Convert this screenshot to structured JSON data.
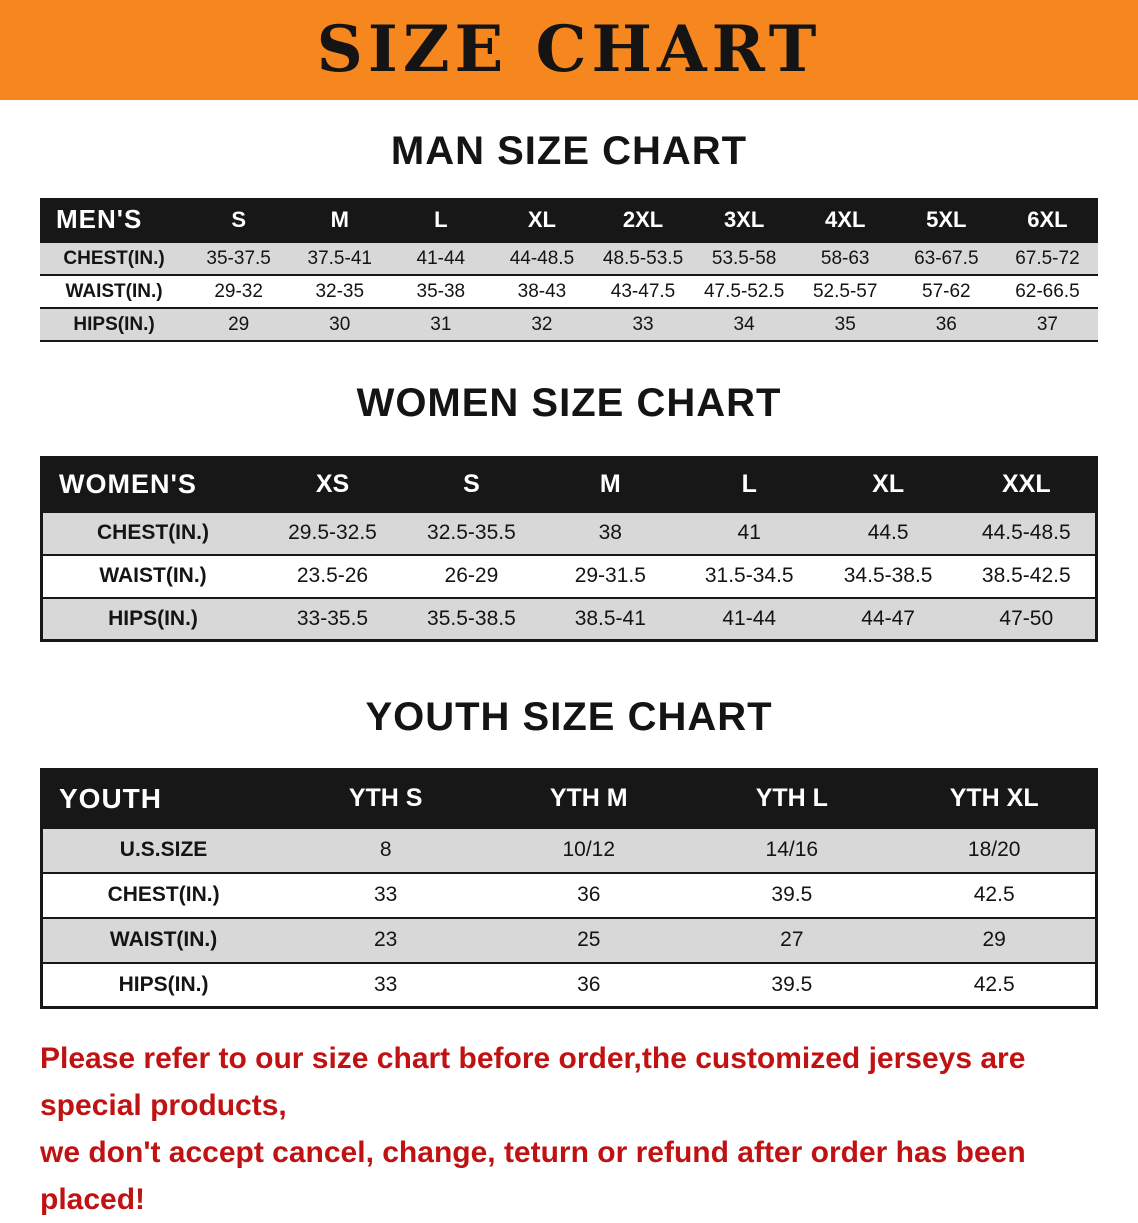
{
  "banner": {
    "title": "SIZE CHART"
  },
  "chart_data": [
    {
      "type": "table",
      "title": "MAN SIZE CHART",
      "columns": [
        "MEN'S",
        "S",
        "M",
        "L",
        "XL",
        "2XL",
        "3XL",
        "4XL",
        "5XL",
        "6XL"
      ],
      "rows": [
        [
          "CHEST(IN.)",
          "35-37.5",
          "37.5-41",
          "41-44",
          "44-48.5",
          "48.5-53.5",
          "53.5-58",
          "58-63",
          "63-67.5",
          "67.5-72"
        ],
        [
          "WAIST(IN.)",
          "29-32",
          "32-35",
          "35-38",
          "38-43",
          "43-47.5",
          "47.5-52.5",
          "52.5-57",
          "57-62",
          "62-66.5"
        ],
        [
          "HIPS(IN.)",
          "29",
          "30",
          "31",
          "32",
          "33",
          "34",
          "35",
          "36",
          "37"
        ]
      ]
    },
    {
      "type": "table",
      "title": "WOMEN SIZE CHART",
      "columns": [
        "WOMEN'S",
        "XS",
        "S",
        "M",
        "L",
        "XL",
        "XXL"
      ],
      "rows": [
        [
          "CHEST(IN.)",
          "29.5-32.5",
          "32.5-35.5",
          "38",
          "41",
          "44.5",
          "44.5-48.5"
        ],
        [
          "WAIST(IN.)",
          "23.5-26",
          "26-29",
          "29-31.5",
          "31.5-34.5",
          "34.5-38.5",
          "38.5-42.5"
        ],
        [
          "HIPS(IN.)",
          "33-35.5",
          "35.5-38.5",
          "38.5-41",
          "41-44",
          "44-47",
          "47-50"
        ]
      ]
    },
    {
      "type": "table",
      "title": "YOUTH SIZE CHART",
      "columns": [
        "YOUTH",
        "YTH S",
        "YTH M",
        "YTH L",
        "YTH XL"
      ],
      "rows": [
        [
          "U.S.SIZE",
          "8",
          "10/12",
          "14/16",
          "18/20"
        ],
        [
          "CHEST(IN.)",
          "33",
          "36",
          "39.5",
          "42.5"
        ],
        [
          "WAIST(IN.)",
          "23",
          "25",
          "27",
          "29"
        ],
        [
          "HIPS(IN.)",
          "33",
          "36",
          "39.5",
          "42.5"
        ]
      ]
    }
  ],
  "disclaimer": {
    "line1": "Please refer to our size chart before order,the customized jerseys are special products,",
    "line2": "we don't accept cancel, change, teturn or refund after order has been placed!"
  },
  "colors": {
    "banner_bg": "#f6861e",
    "header_bg": "#171717",
    "row_alt_bg": "#d8d8d8",
    "disclaimer_red": "#c01212"
  }
}
